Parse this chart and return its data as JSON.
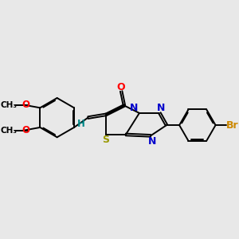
{
  "background_color": "#e8e8e8",
  "bond_color": "#000000",
  "atom_colors": {
    "O": "#ff0000",
    "N": "#0000cc",
    "S": "#999900",
    "Br": "#cc8800",
    "H": "#008888",
    "C": "#000000"
  },
  "font_size": 8.5,
  "fig_width": 3.0,
  "fig_height": 3.0,
  "dpi": 100
}
